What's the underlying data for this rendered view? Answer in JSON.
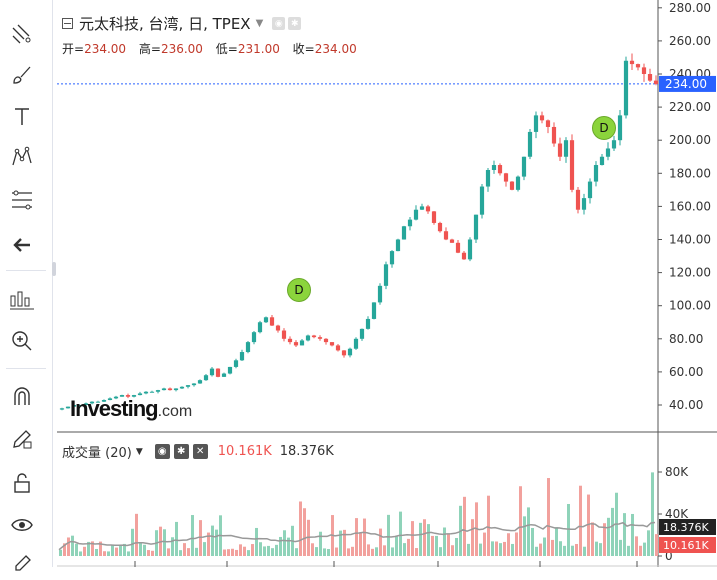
{
  "symbol": {
    "title": "元太科技, 台湾, 日, TPEX"
  },
  "ohlc": {
    "open_label": "开=",
    "open": "234.00",
    "high_label": "高=",
    "high": "236.00",
    "low_label": "低=",
    "low": "231.00",
    "close_label": "收=",
    "close": "234.00"
  },
  "price_axis": {
    "ticks": [
      "280.00",
      "260.00",
      "240.00",
      "220.00",
      "200.00",
      "180.00",
      "160.00",
      "140.00",
      "120.00",
      "100.00",
      "80.00",
      "60.00",
      "40.00"
    ],
    "last_price": "234.00"
  },
  "volume": {
    "label": "成交量 (20)",
    "value": "10.161K",
    "ma_value": "18.376K",
    "axis_ticks": [
      "80K",
      "40K",
      "0"
    ]
  },
  "markers": [
    {
      "label": "D"
    },
    {
      "label": "D"
    }
  ],
  "watermark": {
    "brand": "Investing",
    "suffix": ".com"
  },
  "colors": {
    "up": "#26a69a",
    "down": "#ef5350",
    "last_price_bg": "#2962ff",
    "volume_ma": "#999999"
  },
  "toolbar_icons": [
    "crosshair-lines-icon",
    "brush-icon",
    "text-icon",
    "pattern-icon",
    "fib-icon",
    "back-arrow-icon",
    "measure-icon",
    "zoom-icon",
    "magnet-icon",
    "lock-pencil-icon",
    "lock-icon",
    "eye-icon",
    "trash-icon"
  ],
  "chart_data": {
    "type": "candlestick",
    "title": "元太科技, 台湾, 日, TPEX",
    "ylim": [
      30,
      285
    ],
    "close_series": [
      38,
      39,
      40,
      40,
      41,
      42,
      42,
      43,
      44,
      45,
      46,
      45,
      46,
      47,
      48,
      48,
      49,
      50,
      49,
      50,
      51,
      52,
      53,
      55,
      58,
      62,
      57,
      59,
      63,
      67,
      72,
      78,
      84,
      90,
      93,
      88,
      85,
      80,
      78,
      76,
      79,
      82,
      81,
      80,
      78,
      76,
      73,
      70,
      74,
      80,
      86,
      92,
      102,
      112,
      125,
      133,
      140,
      148,
      152,
      158,
      160,
      157,
      150,
      145,
      140,
      138,
      132,
      128,
      140,
      155,
      172,
      182,
      185,
      180,
      175,
      170,
      178,
      190,
      205,
      215,
      212,
      208,
      198,
      190,
      200,
      170,
      158,
      165,
      175,
      185,
      190,
      195,
      200,
      215,
      248,
      246,
      244,
      240,
      236,
      234
    ],
    "volume_ma_value": "18.376K",
    "last_volume": "10.161K"
  }
}
